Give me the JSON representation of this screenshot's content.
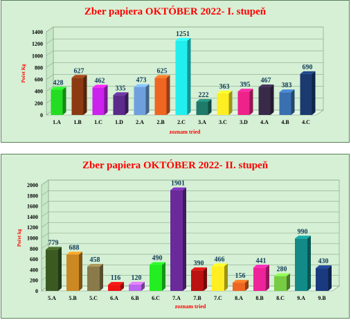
{
  "chart_data": [
    {
      "type": "bar",
      "title": "Zber papiera OKTÓBER 2022- I. stupeň",
      "xlabel": "zoznam tried",
      "ylabel": "Počet Kg",
      "ylim": [
        0,
        1400
      ],
      "yticks": [
        0,
        200,
        400,
        600,
        800,
        1000,
        1200,
        1400
      ],
      "categories": [
        "1.A",
        "1.B",
        "1.C",
        "1.D",
        "2.A",
        "2.B",
        "2.C",
        "3.A",
        "3.C",
        "3.D",
        "4.A",
        "4.B",
        "4.C"
      ],
      "values": [
        428,
        627,
        462,
        335,
        473,
        625,
        1251,
        222,
        363,
        395,
        467,
        383,
        690
      ],
      "colors": [
        "#22dd22",
        "#8b3a12",
        "#cc22ee",
        "#5b2a8a",
        "#6fa0dd",
        "#ee6622",
        "#22eeee",
        "#1f7a6a",
        "#ffee22",
        "#ee2288",
        "#3a2a4a",
        "#3a70b0",
        "#1a3a70"
      ],
      "grid": true
    },
    {
      "type": "bar",
      "title": "Zber papiera OKTÓBER 2022- II. stupeň",
      "xlabel": "zoznam tried",
      "ylabel": "Počet kg",
      "ylim": [
        0,
        2000
      ],
      "yticks": [
        0,
        200,
        400,
        600,
        800,
        1000,
        1200,
        1400,
        1600,
        1800,
        2000
      ],
      "categories": [
        "5.A",
        "5.B",
        "5.C",
        "6.A",
        "6.B",
        "6.C",
        "7.A",
        "7.B",
        "7.C",
        "8.A",
        "8.B",
        "8.C",
        "9.A",
        "9.B"
      ],
      "values": [
        779,
        688,
        458,
        116,
        120,
        490,
        1901,
        390,
        466,
        156,
        441,
        280,
        990,
        430
      ],
      "colors": [
        "#3a5a22",
        "#cc8822",
        "#8a7a4a",
        "#ee1111",
        "#bb66ee",
        "#22ee22",
        "#6a2a9a",
        "#bb1111",
        "#ffee22",
        "#ee6622",
        "#ee2299",
        "#77cc44",
        "#118a88",
        "#1a3a80"
      ],
      "grid": true
    }
  ]
}
